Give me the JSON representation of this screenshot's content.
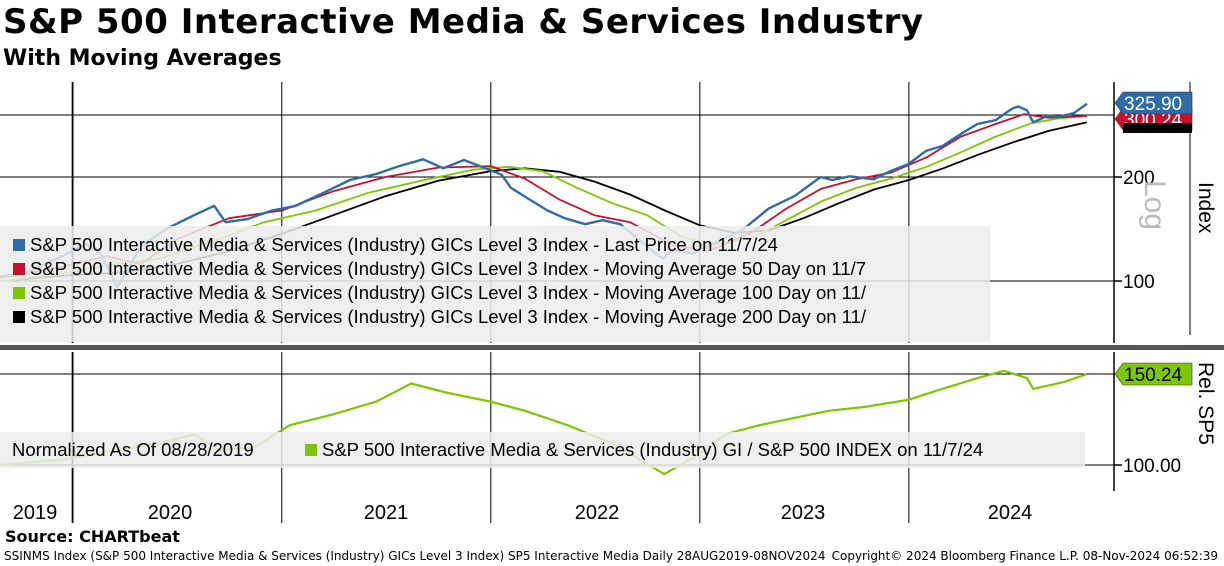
{
  "header": {
    "title": "S&P 500 Interactive Media & Services Industry",
    "subtitle": "With Moving Averages"
  },
  "source": "Source: CHARTbeat",
  "footer": {
    "left": "SSINMS Index (S&P 500 Interactive Media & Services (Industry) GICs Level 3 Index) SP5 Interactive Media  Daily 28AUG2019-08NOV2024",
    "right": "Copyright© 2024 Bloomberg Finance L.P.   08-Nov-2024 06:52:39"
  },
  "colors": {
    "last_price": "#2e6ba8",
    "ma50": "#c8102e",
    "ma100": "#7dc700",
    "ma200": "#000000",
    "relative": "#7dc700",
    "relative_faded": "#b9e07c"
  },
  "chart_data": [
    {
      "type": "line",
      "panel": "upper",
      "scale": "log",
      "axis_label": "Index",
      "axis_note": "Log",
      "y_ticks": [
        100,
        200
      ],
      "x_labels": [
        "2019",
        "2020",
        "2021",
        "2022",
        "2023",
        "2024"
      ],
      "legend": [
        "S&P 500 Interactive Media & Services (Industry) GICs Level 3 Index - Last Price on 11/7/24",
        "S&P 500 Interactive Media & Services (Industry) GICs Level 3 Index - Moving Average 50 Day on 11/7",
        "S&P 500 Interactive Media & Services (Industry) GICs Level 3 Index - Moving Average 100 Day on 11/",
        "S&P 500 Interactive Media & Services (Industry) GICs Level 3 Index - Moving Average 200 Day on 11/"
      ],
      "value_tags": {
        "last_price": "325.90",
        "ma50": "300.24"
      },
      "series": [
        {
          "name": "Last Price",
          "key": "last_price",
          "x": [
            "2019-08-28",
            "2019-10-15",
            "2019-12-15",
            "2020-01-25",
            "2020-02-20",
            "2020-03-20",
            "2020-04-30",
            "2020-06-15",
            "2020-08-01",
            "2020-09-05",
            "2020-09-25",
            "2020-11-01",
            "2020-12-15",
            "2021-01-25",
            "2021-03-15",
            "2021-04-30",
            "2021-06-15",
            "2021-07-25",
            "2021-09-05",
            "2021-10-10",
            "2021-11-15",
            "2021-12-20",
            "2022-01-20",
            "2022-02-05",
            "2022-03-10",
            "2022-04-10",
            "2022-05-10",
            "2022-06-15",
            "2022-07-15",
            "2022-08-15",
            "2022-09-20",
            "2022-10-28",
            "2022-11-15",
            "2022-12-20",
            "2023-01-15",
            "2023-02-05",
            "2023-03-15",
            "2023-05-01",
            "2023-06-15",
            "2023-07-31",
            "2023-08-20",
            "2023-09-20",
            "2023-10-31",
            "2023-11-30",
            "2023-12-31",
            "2024-01-31",
            "2024-02-29",
            "2024-03-31",
            "2024-04-30",
            "2024-05-31",
            "2024-06-30",
            "2024-07-10",
            "2024-07-25",
            "2024-08-05",
            "2024-08-31",
            "2024-09-20",
            "2024-10-15",
            "2024-11-07"
          ],
          "values": [
            103,
            106,
            118,
            128,
            120,
            96,
            126,
            142,
            155,
            165,
            148,
            151,
            160,
            165,
            180,
            196,
            204,
            215,
            225,
            212,
            224,
            213,
            203,
            186,
            172,
            160,
            152,
            146,
            150,
            146,
            130,
            116,
            123,
            120,
            126,
            131,
            140,
            162,
            176,
            200,
            196,
            201,
            197,
            208,
            218,
            238,
            246,
            266,
            285,
            292,
            316,
            320,
            312,
            288,
            301,
            299,
            306,
            325.9
          ]
        },
        {
          "name": "Moving Average 50 Day",
          "key": "ma50",
          "x": [
            "2019-08-28",
            "2019-12-15",
            "2020-03-01",
            "2020-04-30",
            "2020-07-01",
            "2020-10-01",
            "2021-01-01",
            "2021-04-01",
            "2021-07-01",
            "2021-10-01",
            "2022-01-01",
            "2022-03-01",
            "2022-05-01",
            "2022-07-01",
            "2022-09-01",
            "2022-11-15",
            "2023-01-15",
            "2023-04-01",
            "2023-06-01",
            "2023-08-01",
            "2023-10-01",
            "2023-12-01",
            "2024-02-01",
            "2024-04-01",
            "2024-06-01",
            "2024-07-20",
            "2024-09-01",
            "2024-11-07"
          ],
          "values": [
            102,
            110,
            118,
            112,
            132,
            152,
            160,
            182,
            200,
            213,
            215,
            198,
            172,
            155,
            148,
            127,
            122,
            138,
            162,
            185,
            197,
            206,
            228,
            262,
            285,
            304,
            297,
            300.24
          ]
        },
        {
          "name": "Moving Average 100 Day",
          "key": "ma100",
          "x": [
            "2019-08-28",
            "2019-12-15",
            "2020-03-15",
            "2020-06-01",
            "2020-09-01",
            "2020-12-01",
            "2021-03-01",
            "2021-06-01",
            "2021-09-01",
            "2021-12-01",
            "2022-02-01",
            "2022-04-01",
            "2022-06-01",
            "2022-08-01",
            "2022-10-01",
            "2022-12-01",
            "2023-02-01",
            "2023-04-01",
            "2023-06-01",
            "2023-08-01",
            "2023-10-01",
            "2023-12-01",
            "2024-02-01",
            "2024-04-01",
            "2024-06-01",
            "2024-08-01",
            "2024-09-15",
            "2024-11-07"
          ],
          "values": [
            100,
            105,
            112,
            116,
            130,
            148,
            160,
            180,
            195,
            210,
            214,
            208,
            186,
            168,
            155,
            134,
            128,
            133,
            150,
            170,
            186,
            198,
            214,
            236,
            262,
            286,
            295,
            301
          ]
        },
        {
          "name": "Moving Average 200 Day",
          "key": "ma200",
          "x": [
            "2019-08-28",
            "2020-01-01",
            "2020-04-01",
            "2020-07-01",
            "2020-10-01",
            "2021-01-01",
            "2021-04-01",
            "2021-07-01",
            "2021-10-01",
            "2022-01-01",
            "2022-03-01",
            "2022-05-01",
            "2022-07-01",
            "2022-09-01",
            "2022-11-01",
            "2023-01-01",
            "2023-03-01",
            "2023-05-01",
            "2023-07-01",
            "2023-09-01",
            "2023-11-01",
            "2024-01-01",
            "2024-03-01",
            "2024-05-01",
            "2024-07-01",
            "2024-09-01",
            "2024-11-07"
          ],
          "values": [
            100,
            104,
            106,
            112,
            122,
            137,
            155,
            176,
            195,
            208,
            212,
            207,
            194,
            178,
            160,
            145,
            138,
            140,
            152,
            168,
            184,
            196,
            212,
            232,
            252,
            272,
            288
          ]
        }
      ]
    },
    {
      "type": "line",
      "panel": "lower",
      "axis_label": "Rel. SP5",
      "y_ticks": [
        100.0
      ],
      "y_tick_labels": [
        "100.00"
      ],
      "legend": [
        "Normalized As Of 08/28/2019",
        "S&P 500 Interactive Media & Services (Industry) GI / S&P 500 INDEX on 11/7/24"
      ],
      "value_tag": "150.24",
      "series": [
        {
          "name": "S&P 500 Interactive Media & Services (Industry) GI / S&P 500 INDEX",
          "key": "relative",
          "x": [
            "2019-08-28",
            "2019-12-15",
            "2020-03-15",
            "2020-06-01",
            "2020-08-01",
            "2020-09-15",
            "2020-11-15",
            "2021-01-15",
            "2021-04-01",
            "2021-06-15",
            "2021-08-15",
            "2021-10-15",
            "2021-12-31",
            "2022-03-01",
            "2022-05-15",
            "2022-08-01",
            "2022-10-31",
            "2022-12-31",
            "2023-02-15",
            "2023-04-15",
            "2023-06-15",
            "2023-08-15",
            "2023-10-15",
            "2023-12-31",
            "2024-02-28",
            "2024-04-30",
            "2024-06-15",
            "2024-07-25",
            "2024-08-05",
            "2024-09-30",
            "2024-11-07"
          ],
          "values": [
            100,
            103,
            108,
            112,
            117,
            108,
            110,
            122,
            128,
            135,
            145,
            140,
            135,
            130,
            122,
            112,
            95,
            106,
            117,
            122,
            126,
            130,
            132,
            136,
            142,
            148,
            152,
            148,
            142,
            146,
            150.24
          ]
        }
      ]
    }
  ]
}
